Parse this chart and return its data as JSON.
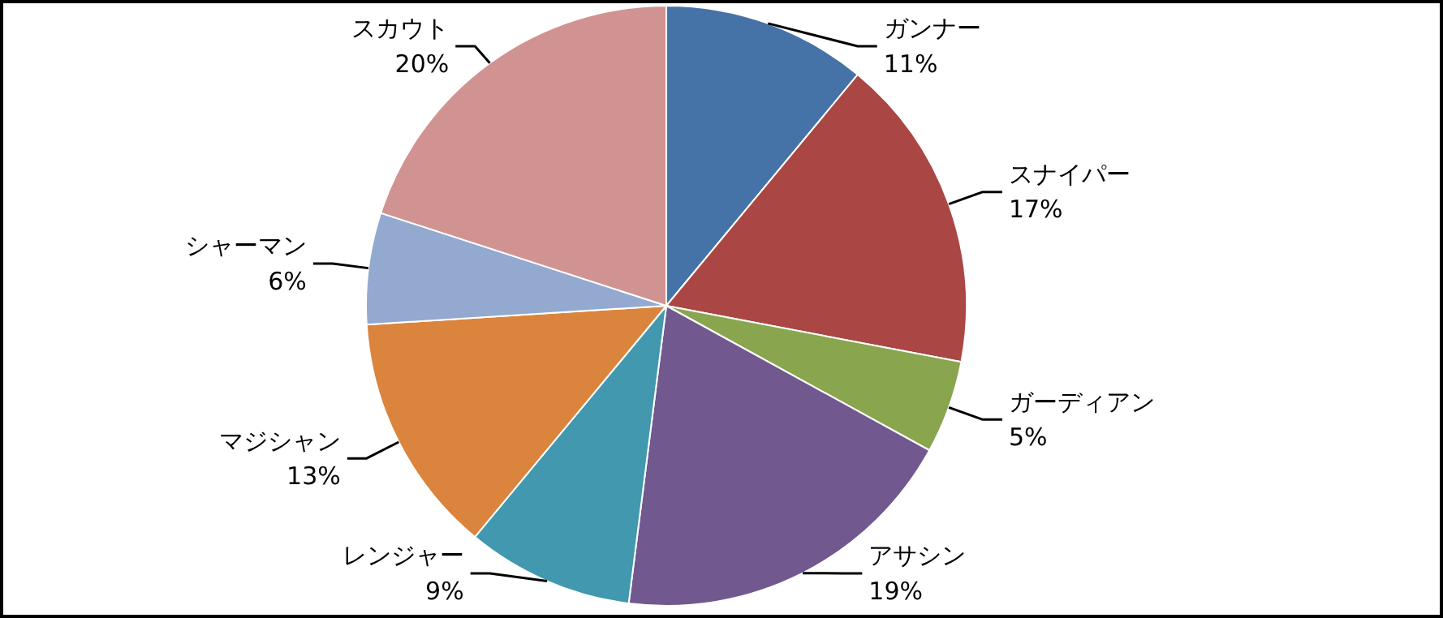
{
  "chart_data": {
    "type": "pie",
    "categories": [
      "ガンナー",
      "スナイパー",
      "ガーディアン",
      "アサシン",
      "レンジャー",
      "マジシャン",
      "シャーマン",
      "スカウト"
    ],
    "values": [
      11,
      17,
      5,
      19,
      9,
      13,
      6,
      20
    ],
    "colors": [
      "#4572a7",
      "#aa4643",
      "#89a54e",
      "#71588f",
      "#4198af",
      "#db843d",
      "#93a9cf",
      "#d19392"
    ],
    "value_labels": [
      "11%",
      "17%",
      "5%",
      "19%",
      "9%",
      "13%",
      "6%",
      "20%"
    ]
  }
}
